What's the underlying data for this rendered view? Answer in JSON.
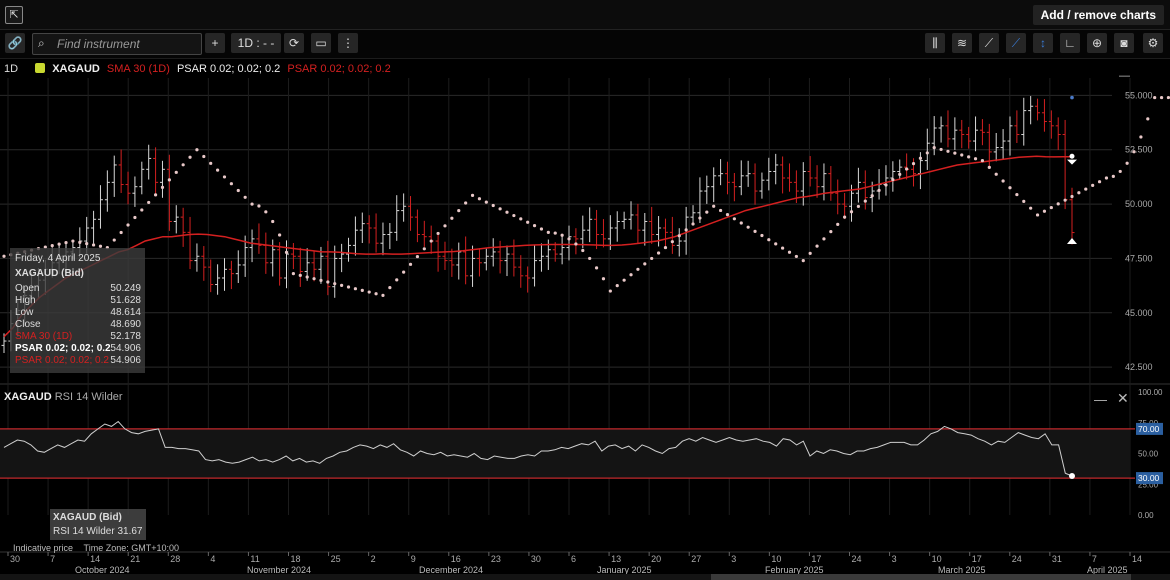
{
  "topbar": {
    "add_remove_label": "Add / remove charts"
  },
  "toolbar": {
    "search_placeholder": "Find instrument",
    "plus_label": "+",
    "interval_label": "1D : - -"
  },
  "legend": {
    "period": "1D",
    "symbol": "XAGAUD",
    "sma_label": "SMA 30 (1D)",
    "psar_white_label": "PSAR 0.02; 0.02; 0.2",
    "psar_red_label": "PSAR 0.02; 0.02; 0.2"
  },
  "tooltip": {
    "date": "Friday, 4 April 2025",
    "symbol": "XAGAUD (Bid)",
    "rows": [
      {
        "label": "Open",
        "value": "50.249",
        "color": "#ddd"
      },
      {
        "label": "High",
        "value": "51.628",
        "color": "#ddd"
      },
      {
        "label": "Low",
        "value": "48.614",
        "color": "#ddd"
      },
      {
        "label": "Close",
        "value": "48.690",
        "color": "#ddd"
      },
      {
        "label": "SMA 30 (1D)",
        "value": "52.178",
        "color": "#d42020"
      },
      {
        "label": "PSAR 0.02; 0.02; 0.2",
        "value": "54.906",
        "color": "#ffffff"
      },
      {
        "label": "PSAR 0.02; 0.02; 0.2",
        "value": "54.906",
        "color": "#d42020"
      }
    ]
  },
  "rsi": {
    "symbol": "XAGAUD",
    "label": "RSI 14 Wilder",
    "tip_symbol": "XAGAUD (Bid)",
    "tip_value": "RSI 14 Wilder 31.67",
    "upper_badge": "70.00",
    "lower_badge": "30.00"
  },
  "footer": {
    "indicative": "Indicative price",
    "timezone": "Time Zone: GMT+10:00"
  },
  "chart_data": [
    {
      "type": "ohlc",
      "title": "XAGAUD",
      "ylim": [
        42.0,
        55.8
      ],
      "y_ticks": [
        "55.000",
        "52.500",
        "50.000",
        "47.500",
        "45.000",
        "42.500"
      ],
      "x_day_ticks": [
        "30",
        "7",
        "14",
        "21",
        "28",
        "4",
        "11",
        "18",
        "25",
        "2",
        "9",
        "16",
        "23",
        "30",
        "6",
        "13",
        "20",
        "27",
        "3",
        "10",
        "17",
        "24",
        "3",
        "10",
        "17",
        "24",
        "31",
        "7",
        "14"
      ],
      "x_month_labels": [
        "October 2024",
        "November 2024",
        "December 2024",
        "January 2025",
        "February 2025",
        "March 2025",
        "April 2025"
      ],
      "close": [
        43.7,
        44.5,
        45.1,
        45.8,
        46.2,
        46.5,
        47.0,
        47.3,
        47.6,
        47.8,
        48.0,
        48.3,
        48.9,
        49.3,
        50.2,
        51.0,
        51.8,
        50.9,
        50.5,
        50.8,
        51.6,
        52.1,
        51.0,
        51.6,
        49.2,
        49.4,
        48.7,
        47.4,
        47.6,
        47.1,
        46.3,
        46.6,
        47.0,
        46.8,
        47.2,
        48.0,
        48.4,
        48.1,
        47.3,
        47.9,
        46.6,
        47.7,
        47.6,
        46.9,
        47.3,
        47.0,
        47.6,
        46.2,
        47.5,
        47.7,
        48.1,
        48.8,
        49.1,
        48.9,
        48.2,
        48.6,
        48.7,
        49.7,
        49.9,
        49.4,
        48.6,
        48.5,
        48.3,
        47.6,
        47.4,
        47.2,
        47.8,
        46.7,
        47.5,
        47.3,
        47.6,
        47.8,
        47.4,
        47.7,
        47.1,
        46.7,
        46.6,
        47.4,
        47.6,
        47.9,
        47.7,
        48.0,
        48.5,
        48.4,
        48.8,
        49.3,
        48.6,
        48.4,
        48.9,
        49.2,
        49.3,
        49.5,
        48.8,
        49.2,
        48.6,
        48.9,
        48.7,
        48.1,
        48.3,
        49.4,
        49.6,
        50.6,
        50.8,
        51.3,
        51.4,
        51.0,
        50.8,
        51.3,
        51.4,
        50.6,
        51.1,
        51.5,
        51.8,
        51.2,
        51.0,
        50.6,
        51.5,
        51.2,
        50.8,
        51.4,
        50.5,
        50.0,
        49.9,
        50.5,
        51.0,
        50.3,
        50.6,
        50.9,
        51.2,
        51.5,
        51.7,
        51.6,
        51.4,
        52.0,
        52.8,
        53.5,
        53.6,
        53.0,
        53.4,
        53.2,
        52.9,
        53.4,
        53.3,
        52.4,
        52.6,
        52.9,
        53.6,
        53.2,
        54.3,
        54.5,
        54.2,
        53.8,
        53.6,
        53.2,
        50.2,
        48.69
      ],
      "sma30": [
        43.9,
        44.3,
        44.9,
        45.3,
        45.7,
        46.0,
        46.3,
        46.6,
        46.8,
        47.0,
        47.2,
        47.4,
        47.6,
        47.8,
        47.9,
        48.1,
        48.3,
        48.4,
        48.5,
        48.5,
        48.55,
        48.6,
        48.62,
        48.6,
        48.55,
        48.5,
        48.4,
        48.3,
        48.2,
        48.15,
        48.1,
        48.05,
        48.0,
        47.95,
        47.9,
        47.85,
        47.8,
        47.8,
        47.78,
        47.75,
        47.72,
        47.7,
        47.7,
        47.72,
        47.7,
        47.7,
        47.72,
        47.74,
        47.76,
        47.78,
        47.8,
        47.82,
        47.85,
        47.9,
        47.95,
        48.0,
        48.02,
        48.05,
        48.07,
        48.1,
        48.12,
        48.13,
        48.14,
        48.14,
        48.14,
        48.14,
        48.13,
        48.12,
        48.1,
        48.1,
        48.12,
        48.15,
        48.2,
        48.25,
        48.3,
        48.4,
        48.5,
        48.65,
        48.8,
        48.95,
        49.1,
        49.25,
        49.4,
        49.55,
        49.7,
        49.8,
        49.9,
        50.0,
        50.1,
        50.2,
        50.3,
        50.35,
        50.42,
        50.5,
        50.55,
        50.6,
        50.65,
        50.7,
        50.8,
        50.9,
        51.0,
        51.1,
        51.2,
        51.3,
        51.4,
        51.5,
        51.6,
        51.7,
        51.8,
        51.85,
        51.9,
        51.95,
        52.0,
        52.05,
        52.1,
        52.15,
        52.18,
        52.2,
        52.18,
        52.17,
        52.178,
        52.178
      ],
      "psar_points": [
        [
          0,
          47.6
        ],
        [
          10,
          48.3
        ],
        [
          15,
          48.0
        ],
        [
          28,
          52.5
        ],
        [
          36,
          50.0
        ],
        [
          42,
          46.8
        ],
        [
          55,
          45.8
        ],
        [
          62,
          48.3
        ],
        [
          68,
          50.4
        ],
        [
          79,
          48.7
        ],
        [
          88,
          46.0
        ],
        [
          96,
          48.0
        ],
        [
          103,
          49.9
        ],
        [
          116,
          47.4
        ],
        [
          122,
          49.4
        ],
        [
          135,
          52.6
        ],
        [
          142,
          52.0
        ],
        [
          150,
          49.5
        ],
        [
          160,
          51.2
        ],
        [
          167,
          54.9
        ],
        [
          170,
          54.9
        ]
      ],
      "rsi": [
        55,
        58,
        61,
        60,
        57,
        52,
        51,
        54,
        57,
        55,
        58,
        61,
        60,
        66,
        70,
        74,
        72,
        76,
        70,
        67,
        66,
        68,
        69,
        70,
        55,
        55,
        54,
        54,
        53,
        52,
        45,
        44,
        45,
        43,
        42,
        43,
        45,
        47,
        44,
        45,
        43,
        45,
        48,
        44,
        46,
        43,
        44,
        42,
        46,
        48,
        51,
        52,
        55,
        57,
        56,
        54,
        57,
        55,
        58,
        53,
        51,
        48,
        52,
        50,
        49,
        51,
        48,
        49,
        48,
        47,
        50,
        46,
        45,
        48,
        47,
        46,
        46,
        48,
        49,
        48,
        52,
        52,
        53,
        55,
        54,
        56,
        58,
        57,
        60,
        52,
        56,
        57,
        54,
        56,
        52,
        57,
        55,
        52,
        50,
        54,
        55,
        60,
        62,
        60,
        63,
        61,
        59,
        61,
        63,
        61,
        60,
        61,
        62,
        60,
        59,
        56,
        62,
        61,
        57,
        60,
        48,
        52,
        50,
        53,
        52,
        50,
        49,
        52,
        52,
        54,
        55,
        57,
        59,
        59,
        59,
        57,
        57,
        61,
        66,
        68,
        72,
        70,
        67,
        66,
        65,
        62,
        60,
        57,
        60,
        59,
        63,
        67,
        65,
        63,
        62,
        66,
        57,
        57,
        34,
        31.67
      ],
      "rsi_levels": {
        "upper": 70,
        "lower": 30
      },
      "rsi_ylim": [
        0,
        100
      ],
      "rsi_ticks": [
        "100.00",
        "75.00",
        "50.00",
        "25.00",
        "0.00"
      ]
    }
  ]
}
